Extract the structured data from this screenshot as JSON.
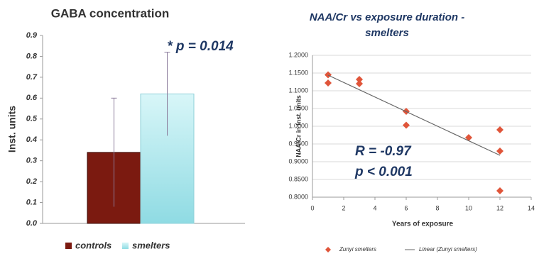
{
  "chart_data": [
    {
      "type": "bar",
      "title": "GABA concentration",
      "y_label": "Inst. units",
      "annotation": "* p = 0.014",
      "ylim": [
        0,
        0.9
      ],
      "yticks": [
        {
          "value": 0,
          "label": "0.0"
        },
        0.1,
        0.2,
        0.3,
        0.4,
        0.5,
        0.6,
        0.7,
        0.8,
        0.9
      ],
      "series": [
        {
          "name": "controls",
          "color": "#7b1a10",
          "values": [
            0.34
          ],
          "errors": [
            0.26
          ]
        },
        {
          "name": "smelters",
          "color": "#aee6ec",
          "values": [
            0.62
          ],
          "errors": [
            0.2
          ]
        }
      ]
    },
    {
      "type": "scatter",
      "title": "NAA/Cr vs exposure duration - smelters",
      "x_label": "Years of exposure",
      "y_label": "NAA/Cr in inst. units",
      "annotations": [
        "R = -0.97",
        "p < 0.001"
      ],
      "xlim": [
        0,
        14
      ],
      "xticks": [
        0,
        2,
        4,
        6,
        8,
        10,
        12,
        14
      ],
      "ylim": [
        0.8,
        1.2
      ],
      "yticks": [
        {
          "value": 0.8,
          "label": "0.8000"
        },
        {
          "value": 0.85,
          "label": "0.8500"
        },
        {
          "value": 0.9,
          "label": "0.9000"
        },
        {
          "value": 0.95,
          "label": "0.9500"
        },
        {
          "value": 1.0,
          "label": "1.0000"
        },
        {
          "value": 1.05,
          "label": "1.0500"
        },
        {
          "value": 1.1,
          "label": "1.1000"
        },
        {
          "value": 1.15,
          "label": "1.1500"
        },
        {
          "value": 1.2,
          "label": "1.2000"
        }
      ],
      "grid": true,
      "series": [
        {
          "name": "Zunyi smelters",
          "color": "#e0553a",
          "x": [
            1,
            1,
            3,
            3,
            6,
            6,
            10,
            12,
            12,
            12
          ],
          "values": [
            1.145,
            1.122,
            1.132,
            1.12,
            1.042,
            1.003,
            0.968,
            0.99,
            0.93,
            0.818
          ]
        },
        {
          "name": "Linear (Zunyi smelters)",
          "type": "line",
          "color": "#666666",
          "x": [
            1,
            12
          ],
          "values": [
            1.144,
            0.918
          ]
        }
      ]
    }
  ]
}
